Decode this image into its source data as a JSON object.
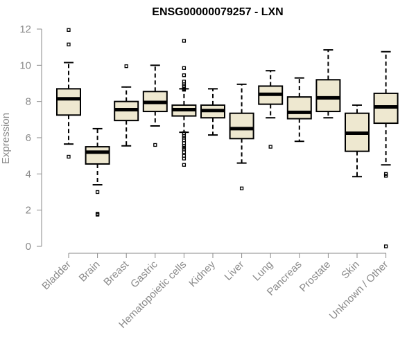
{
  "chart_data": {
    "type": "boxplot",
    "title": "ENSG00000079257 - LXN",
    "ylabel": "Expression",
    "xlabel": "",
    "ylim": [
      0,
      12
    ],
    "yticks": [
      0,
      2,
      4,
      6,
      8,
      10,
      12
    ],
    "box_color": "#EEE8D0",
    "categories": [
      "Bladder",
      "Brain",
      "Breast",
      "Gastric",
      "Hematopoietic cells",
      "Kidney",
      "Liver",
      "Lung",
      "Pancreas",
      "Prostate",
      "Skin",
      "Unknown / Other"
    ],
    "boxes": [
      {
        "whisker_low": 5.65,
        "q1": 7.25,
        "median": 8.15,
        "q3": 8.7,
        "whisker_high": 10.15,
        "outliers": [
          4.95,
          11.15,
          11.95
        ]
      },
      {
        "whisker_low": 3.4,
        "q1": 4.55,
        "median": 5.2,
        "q3": 5.5,
        "whisker_high": 6.5,
        "outliers": [
          3.0,
          1.8,
          1.75
        ]
      },
      {
        "whisker_low": 5.55,
        "q1": 6.95,
        "median": 7.55,
        "q3": 8.0,
        "whisker_high": 8.8,
        "outliers": [
          9.95
        ]
      },
      {
        "whisker_low": 6.65,
        "q1": 7.45,
        "median": 7.95,
        "q3": 8.55,
        "whisker_high": 10.0,
        "outliers": [
          5.6
        ]
      },
      {
        "whisker_low": 6.3,
        "q1": 7.2,
        "median": 7.55,
        "q3": 7.8,
        "whisker_high": 8.7,
        "outliers": [
          11.35,
          9.85,
          9.45,
          9.1,
          8.95,
          8.85,
          8.7,
          8.65,
          6.25,
          6.1,
          6.0,
          5.85,
          5.7,
          5.55,
          5.45,
          5.35,
          5.2,
          5.0,
          4.85,
          4.5
        ]
      },
      {
        "whisker_low": 6.15,
        "q1": 7.1,
        "median": 7.5,
        "q3": 7.8,
        "whisker_high": 8.7,
        "outliers": []
      },
      {
        "whisker_low": 4.6,
        "q1": 5.95,
        "median": 6.5,
        "q3": 7.35,
        "whisker_high": 8.95,
        "outliers": [
          3.2
        ]
      },
      {
        "whisker_low": 7.1,
        "q1": 7.85,
        "median": 8.4,
        "q3": 8.85,
        "whisker_high": 9.7,
        "outliers": [
          5.5
        ]
      },
      {
        "whisker_low": 5.8,
        "q1": 7.05,
        "median": 7.4,
        "q3": 8.25,
        "whisker_high": 9.3,
        "outliers": []
      },
      {
        "whisker_low": 7.1,
        "q1": 7.45,
        "median": 8.2,
        "q3": 9.2,
        "whisker_high": 10.85,
        "outliers": []
      },
      {
        "whisker_low": 3.85,
        "q1": 5.25,
        "median": 6.25,
        "q3": 7.35,
        "whisker_high": 7.8,
        "outliers": []
      },
      {
        "whisker_low": 4.5,
        "q1": 6.8,
        "median": 7.7,
        "q3": 8.45,
        "whisker_high": 10.75,
        "outliers": [
          4.0,
          3.9,
          0.0
        ]
      }
    ]
  }
}
